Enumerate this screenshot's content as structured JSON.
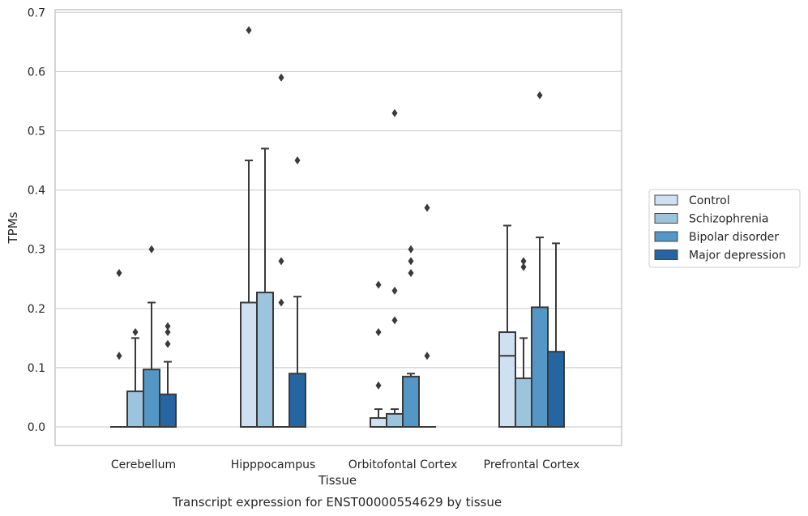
{
  "chart_data": {
    "type": "box",
    "title": "",
    "caption": "Transcript expression for ENST00000554629 by tissue",
    "xlabel": "Tissue",
    "ylabel": "TPMs",
    "ylim": [
      -0.031,
      0.705
    ],
    "yticks": [
      "0.0",
      "0.1",
      "0.2",
      "0.3",
      "0.4",
      "0.5",
      "0.6",
      "0.7"
    ],
    "grid": true,
    "legend_position": "right",
    "categories": [
      "Cerebellum",
      "Hipppocampus",
      "Orbitofontal Cortex",
      "Prefrontal Cortex"
    ],
    "series": [
      {
        "name": "Control",
        "color": "#cfe0f0",
        "boxes": [
          {
            "q1": 0,
            "median": 0,
            "q3": 0,
            "whisker_low": 0,
            "whisker_high": 0,
            "outliers": [
              0.12,
              0.26
            ]
          },
          {
            "q1": 0,
            "median": 0,
            "q3": 0.21,
            "whisker_low": 0,
            "whisker_high": 0.45,
            "outliers": [
              0.67
            ]
          },
          {
            "q1": 0,
            "median": 0,
            "q3": 0.015,
            "whisker_low": 0,
            "whisker_high": 0.03,
            "outliers": [
              0.07,
              0.16,
              0.24
            ]
          },
          {
            "q1": 0,
            "median": 0.12,
            "q3": 0.16,
            "whisker_low": 0,
            "whisker_high": 0.34,
            "outliers": []
          }
        ]
      },
      {
        "name": "Schizophrenia",
        "color": "#9dc4dd",
        "boxes": [
          {
            "q1": 0,
            "median": 0,
            "q3": 0.06,
            "whisker_low": 0,
            "whisker_high": 0.15,
            "outliers": [
              0.16
            ]
          },
          {
            "q1": 0,
            "median": 0,
            "q3": 0.227,
            "whisker_low": 0,
            "whisker_high": 0.47,
            "outliers": []
          },
          {
            "q1": 0,
            "median": 0,
            "q3": 0.022,
            "whisker_low": 0,
            "whisker_high": 0.03,
            "outliers": [
              0.18,
              0.23,
              0.53
            ]
          },
          {
            "q1": 0,
            "median": 0,
            "q3": 0.082,
            "whisker_low": 0,
            "whisker_high": 0.15,
            "outliers": [
              0.27,
              0.28
            ]
          }
        ]
      },
      {
        "name": "Bipolar disorder",
        "color": "#5496c5",
        "boxes": [
          {
            "q1": 0,
            "median": 0,
            "q3": 0.097,
            "whisker_low": 0,
            "whisker_high": 0.21,
            "outliers": [
              0.3
            ]
          },
          {
            "q1": 0,
            "median": 0,
            "q3": 0,
            "whisker_low": 0,
            "whisker_high": 0,
            "outliers": [
              0.21,
              0.28,
              0.59
            ]
          },
          {
            "q1": 0,
            "median": 0,
            "q3": 0.085,
            "whisker_low": 0,
            "whisker_high": 0.09,
            "outliers": [
              0.26,
              0.28,
              0.3
            ]
          },
          {
            "q1": 0,
            "median": 0,
            "q3": 0.202,
            "whisker_low": 0,
            "whisker_high": 0.32,
            "outliers": [
              0.56
            ]
          }
        ]
      },
      {
        "name": "Major depression",
        "color": "#2565a2",
        "boxes": [
          {
            "q1": 0,
            "median": 0,
            "q3": 0.055,
            "whisker_low": 0,
            "whisker_high": 0.11,
            "outliers": [
              0.14,
              0.16,
              0.17
            ]
          },
          {
            "q1": 0,
            "median": 0,
            "q3": 0.09,
            "whisker_low": 0,
            "whisker_high": 0.22,
            "outliers": [
              0.45
            ]
          },
          {
            "q1": 0,
            "median": 0,
            "q3": 0,
            "whisker_low": 0,
            "whisker_high": 0,
            "outliers": [
              0.12,
              0.37
            ]
          },
          {
            "q1": 0,
            "median": 0,
            "q3": 0.127,
            "whisker_low": 0,
            "whisker_high": 0.31,
            "outliers": []
          }
        ]
      }
    ]
  }
}
